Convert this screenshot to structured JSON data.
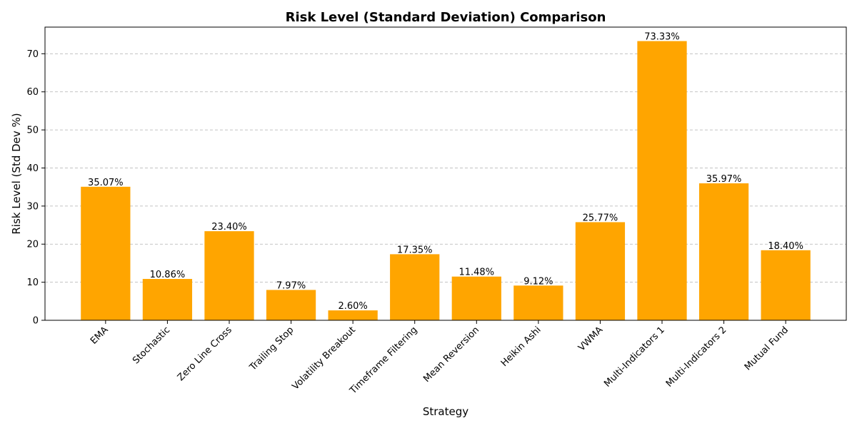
{
  "chart_data": {
    "type": "bar",
    "title": "Risk Level (Standard Deviation) Comparison",
    "xlabel": "Strategy",
    "ylabel": "Risk Level (Std Dev %)",
    "categories": [
      "EMA",
      "Stochastic",
      "Zero Line Cross",
      "Trailing Stop",
      "Volatility Breakout",
      "Timeframe Filtering",
      "Mean Reversion",
      "Heikin Ashi",
      "VWMA",
      "Multi-Indicators 1",
      "Multi-Indicators 2",
      "Mutual Fund"
    ],
    "values": [
      35.07,
      10.86,
      23.4,
      7.97,
      2.6,
      17.35,
      11.48,
      9.12,
      25.77,
      73.33,
      35.97,
      18.4
    ],
    "data_labels": [
      "35.07%",
      "10.86%",
      "23.40%",
      "7.97%",
      "2.60%",
      "17.35%",
      "11.48%",
      "9.12%",
      "25.77%",
      "73.33%",
      "35.97%",
      "18.40%"
    ],
    "ylim": [
      0,
      77
    ],
    "yticks": [
      0,
      10,
      20,
      30,
      40,
      50,
      60,
      70
    ],
    "grid": "y-dashed",
    "bar_color": "#FFA500",
    "legend": "none"
  }
}
